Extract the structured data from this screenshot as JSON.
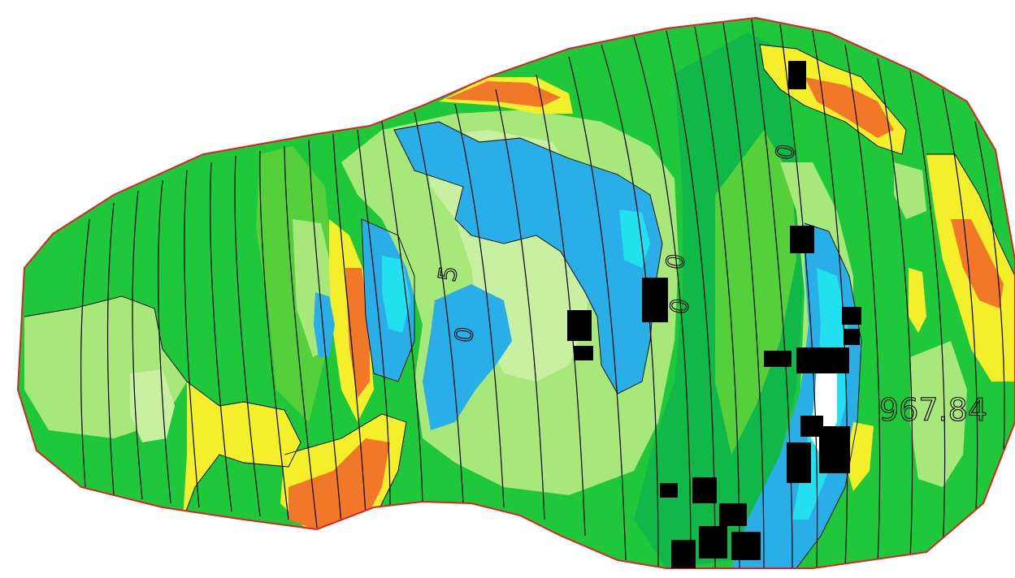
{
  "map": {
    "elevation_label": "967.84",
    "contour_labels": [
      "5",
      "0",
      "0",
      "0",
      "0"
    ],
    "colors": {
      "boundary": "#e02020",
      "base_green": "#1fc83a",
      "dark_green": "#10b84a",
      "mid_green": "#55d03a",
      "light_green": "#a8e87a",
      "pale_green": "#c8f0a0",
      "yellow": "#f5ee2a",
      "orange": "#f07828",
      "blue": "#2aaee8",
      "cyan": "#22e0f0",
      "white": "#ffffff",
      "building": "#000000",
      "contour": "#000000"
    }
  }
}
